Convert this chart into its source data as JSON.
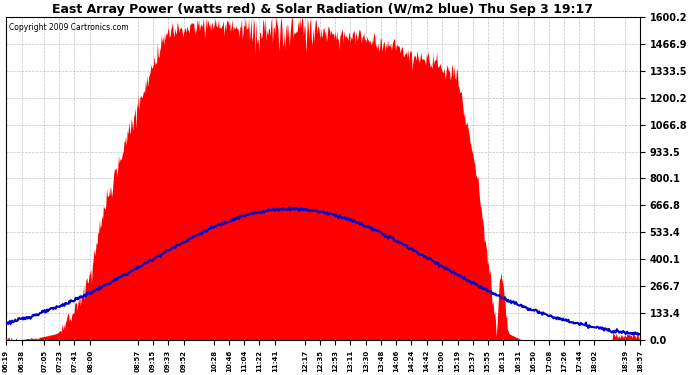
{
  "title": "East Array Power (watts red) & Solar Radiation (W/m2 blue) Thu Sep 3 19:17",
  "copyright": "Copyright 2009 Cartronics.com",
  "title_fontsize": 9,
  "background_color": "#ffffff",
  "plot_bg_color": "#ffffff",
  "grid_color": "#aaaaaa",
  "ytick_labels": [
    "0.0",
    "133.4",
    "266.7",
    "400.1",
    "533.4",
    "666.8",
    "800.1",
    "933.5",
    "1066.8",
    "1200.2",
    "1333.5",
    "1466.9",
    "1600.2"
  ],
  "ytick_values": [
    0.0,
    133.4,
    266.7,
    400.1,
    533.4,
    666.8,
    800.1,
    933.5,
    1066.8,
    1200.2,
    1333.5,
    1466.9,
    1600.2
  ],
  "ymax": 1600.2,
  "ymin": 0.0,
  "xtick_labels": [
    "06:19",
    "06:38",
    "07:05",
    "07:23",
    "07:41",
    "08:00",
    "08:57",
    "09:15",
    "09:33",
    "09:52",
    "10:28",
    "10:46",
    "11:04",
    "11:22",
    "11:41",
    "12:17",
    "12:35",
    "12:53",
    "13:11",
    "13:30",
    "13:48",
    "14:06",
    "14:24",
    "14:42",
    "15:00",
    "15:19",
    "15:37",
    "15:55",
    "16:13",
    "16:31",
    "16:50",
    "17:08",
    "17:26",
    "17:44",
    "18:02",
    "18:39",
    "18:57"
  ],
  "power_color": "#ff0000",
  "radiation_color": "#0000cc"
}
